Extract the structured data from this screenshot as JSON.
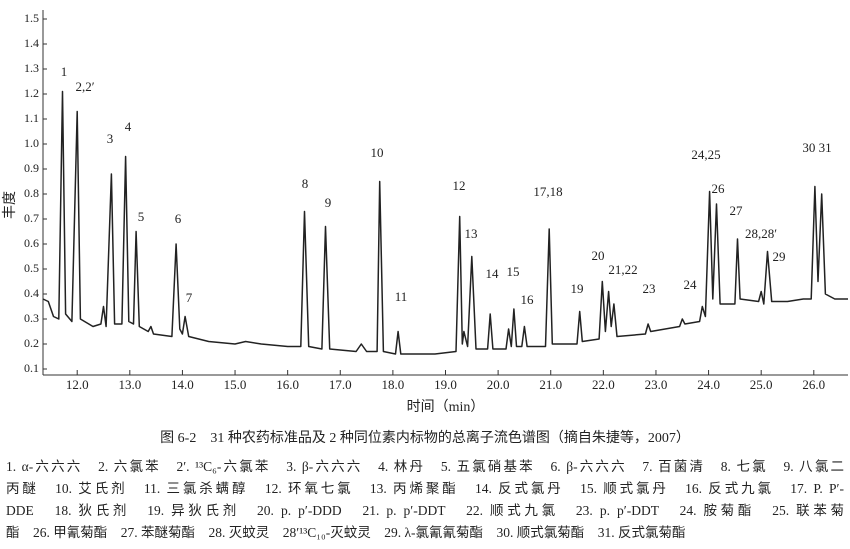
{
  "chart_data": {
    "type": "line",
    "ylabel": "丰度",
    "xlabel": "时间（min）",
    "xlim": [
      11.35,
      26.65
    ],
    "ylim": [
      0.076,
      1.536
    ],
    "xticks": [
      {
        "value": 12,
        "label": "12.0"
      },
      {
        "value": 13,
        "label": "13.0"
      },
      {
        "value": 14,
        "label": "14.0"
      },
      {
        "value": 15,
        "label": "15.0"
      },
      {
        "value": 16,
        "label": "16.0"
      },
      {
        "value": 17,
        "label": "17.0"
      },
      {
        "value": 18,
        "label": "18.0"
      },
      {
        "value": 19,
        "label": "19.0"
      },
      {
        "value": 20,
        "label": "20.0"
      },
      {
        "value": 21,
        "label": "21.0"
      },
      {
        "value": 22,
        "label": "22.0"
      },
      {
        "value": 23,
        "label": "23.0"
      },
      {
        "value": 24,
        "label": "24.0"
      },
      {
        "value": 25,
        "label": "25.0"
      },
      {
        "value": 26,
        "label": "26.0"
      }
    ],
    "yticks": [
      0.1,
      0.2,
      0.3,
      0.4,
      0.5,
      0.6,
      0.7,
      0.8,
      0.9,
      {
        "value": 1,
        "label": "1.0"
      },
      1.1,
      1.2,
      1.3,
      1.4,
      1.5
    ],
    "color": "#222222",
    "x": [
      11.35,
      11.45,
      11.55,
      11.65,
      11.72,
      11.78,
      11.9,
      12.0,
      12.06,
      12.3,
      12.45,
      12.5,
      12.55,
      12.65,
      12.71,
      12.85,
      12.92,
      12.98,
      13.07,
      13.12,
      13.18,
      13.35,
      13.4,
      13.45,
      13.8,
      13.88,
      13.95,
      14.0,
      14.05,
      14.12,
      14.5,
      15.0,
      15.2,
      15.5,
      16.0,
      16.25,
      16.32,
      16.4,
      16.65,
      16.72,
      16.8,
      17.3,
      17.4,
      17.5,
      17.7,
      17.75,
      17.82,
      18.05,
      18.1,
      18.15,
      18.8,
      19.2,
      19.27,
      19.32,
      19.35,
      19.42,
      19.5,
      19.58,
      19.8,
      19.85,
      19.9,
      20.15,
      20.2,
      20.25,
      20.3,
      20.35,
      20.45,
      20.5,
      20.55,
      20.9,
      20.97,
      21.03,
      21.5,
      21.55,
      21.6,
      21.92,
      21.98,
      22.04,
      22.1,
      22.15,
      22.2,
      22.26,
      22.8,
      22.85,
      22.9,
      23.45,
      23.5,
      23.55,
      23.83,
      23.88,
      23.94,
      24.02,
      24.08,
      24.15,
      24.22,
      24.5,
      24.55,
      24.6,
      24.95,
      25.0,
      25.05,
      25.12,
      25.2,
      25.5,
      25.8,
      25.95,
      26.02,
      26.08,
      26.15,
      26.22,
      26.4,
      26.65
    ],
    "values": [
      0.38,
      0.37,
      0.31,
      0.3,
      1.21,
      0.32,
      0.29,
      1.13,
      0.3,
      0.27,
      0.28,
      0.35,
      0.27,
      0.88,
      0.28,
      0.28,
      0.95,
      0.29,
      0.28,
      0.65,
      0.27,
      0.25,
      0.27,
      0.24,
      0.23,
      0.6,
      0.26,
      0.24,
      0.31,
      0.23,
      0.21,
      0.2,
      0.21,
      0.2,
      0.19,
      0.19,
      0.73,
      0.19,
      0.18,
      0.67,
      0.18,
      0.17,
      0.2,
      0.17,
      0.17,
      0.85,
      0.17,
      0.16,
      0.25,
      0.16,
      0.16,
      0.17,
      0.71,
      0.2,
      0.25,
      0.19,
      0.55,
      0.18,
      0.18,
      0.32,
      0.18,
      0.18,
      0.26,
      0.19,
      0.34,
      0.19,
      0.19,
      0.27,
      0.19,
      0.19,
      0.66,
      0.2,
      0.2,
      0.33,
      0.21,
      0.22,
      0.45,
      0.25,
      0.41,
      0.27,
      0.36,
      0.23,
      0.24,
      0.28,
      0.25,
      0.27,
      0.3,
      0.28,
      0.29,
      0.35,
      0.31,
      0.81,
      0.38,
      0.76,
      0.36,
      0.36,
      0.62,
      0.38,
      0.37,
      0.41,
      0.36,
      0.57,
      0.37,
      0.37,
      0.38,
      0.38,
      0.83,
      0.45,
      0.8,
      0.4,
      0.38,
      0.38
    ],
    "annotations": [
      "1",
      "2,2′",
      "3",
      "4",
      "5",
      "6",
      "7",
      "8",
      "9",
      "10",
      "11",
      "12",
      "13",
      "14",
      "15",
      "16",
      "17,18",
      "19",
      "20",
      "21,22",
      "23",
      "24",
      "24,25",
      "26",
      "27",
      "28,28′",
      "29",
      "30 31"
    ]
  },
  "figure": {
    "caption": "图 6-2　31 种农药标准品及 2 种同位素内标物的总离子流色谱图（摘自朱捷等，2007）",
    "legend": [
      "1. α-六六六　2. 六氯苯　2′. ¹³C₆-六氯苯　3. β-六六六　4. 林丹　5. 五氯硝基苯　6. β-六六六　7. 百菌清　8. 七氯　9. 八氯二",
      "丙醚　10. 艾氏剂　11. 三氯杀螨醇　12. 环氧七氯　13. 丙烯聚酯　14. 反式氯丹　15. 顺式氯丹　16. 反式九氯　17. P. P′-",
      "DDE　18. 狄氏剂　19. 异狄氏剂　20. p. p′-DDD　21. p. p′-DDT　22. 顺式九氯　23. p. p′-DDT　24. 胺菊酯　25. 联苯菊",
      "酯　26. 甲氰菊酯　27. 苯醚菊酯　28. 灭蚊灵　28′¹³C₁₀-灭蚊灵　29. λ-氯氰氰菊酯　30. 顺式氯菊酯　31. 反式氯菊酯"
    ]
  }
}
